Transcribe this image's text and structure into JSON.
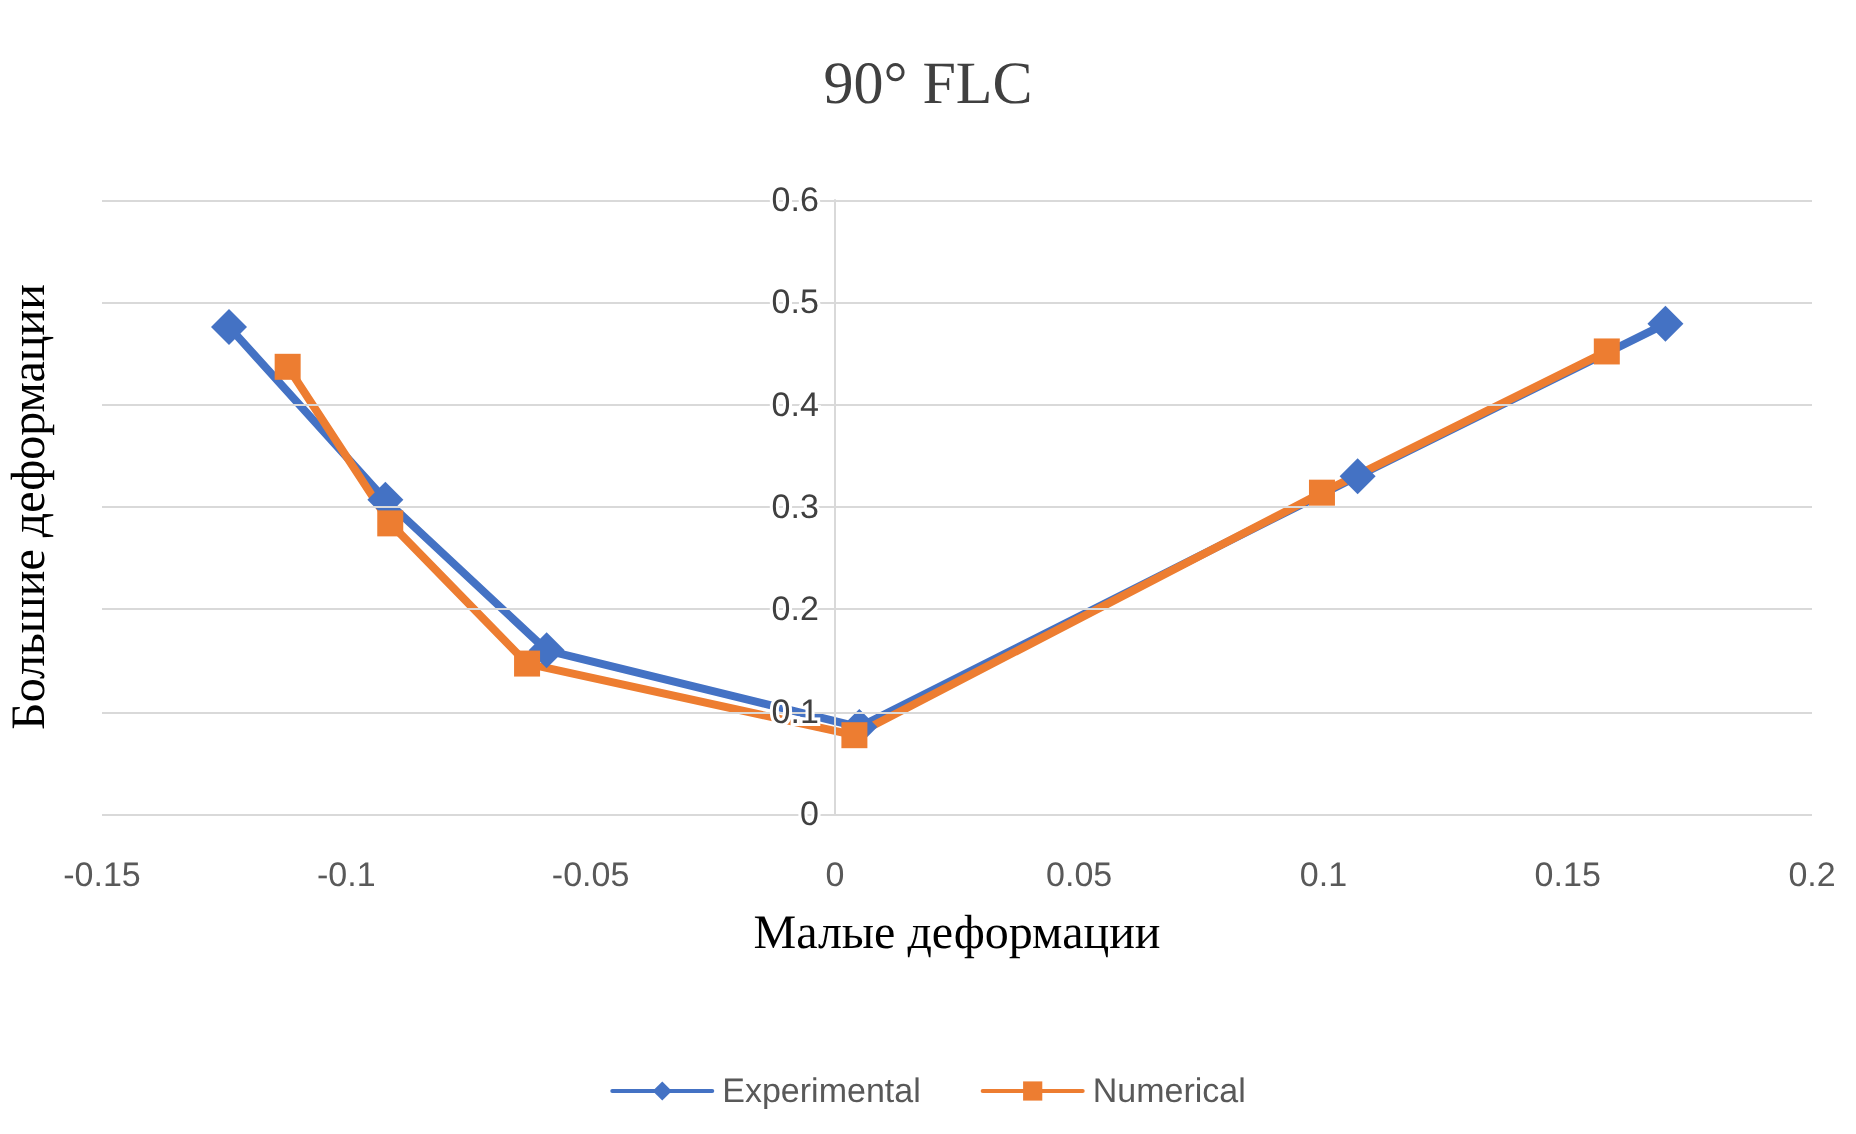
{
  "chart_data": {
    "type": "line",
    "title": "90° FLC",
    "xlabel": "Малые деформации",
    "ylabel": "Большие деформации",
    "xlim": [
      -0.15,
      0.2
    ],
    "xticks": [
      -0.15,
      -0.1,
      -0.05,
      0,
      0.05,
      0.1,
      0.15,
      0.2
    ],
    "ylim": [
      0,
      0.6
    ],
    "yticks": [
      0,
      0.1,
      0.2,
      0.3,
      0.4,
      0.5,
      0.6
    ],
    "grid": "y",
    "legend": "bottom",
    "line_style": "solid",
    "series": [
      {
        "name": "Experimental",
        "color": "#4472c4",
        "marker": "diamond",
        "x": [
          -0.124,
          -0.092,
          -0.059,
          0.005,
          0.107,
          0.17
        ],
        "values": [
          0.476,
          0.307,
          0.16,
          0.085,
          0.33,
          0.479
        ]
      },
      {
        "name": "Numerical",
        "color": "#ed7d31",
        "marker": "square",
        "x": [
          -0.112,
          -0.091,
          -0.063,
          0.004,
          0.0997,
          0.158
        ],
        "values": [
          0.437,
          0.284,
          0.147,
          0.077,
          0.314,
          0.452
        ]
      }
    ]
  }
}
